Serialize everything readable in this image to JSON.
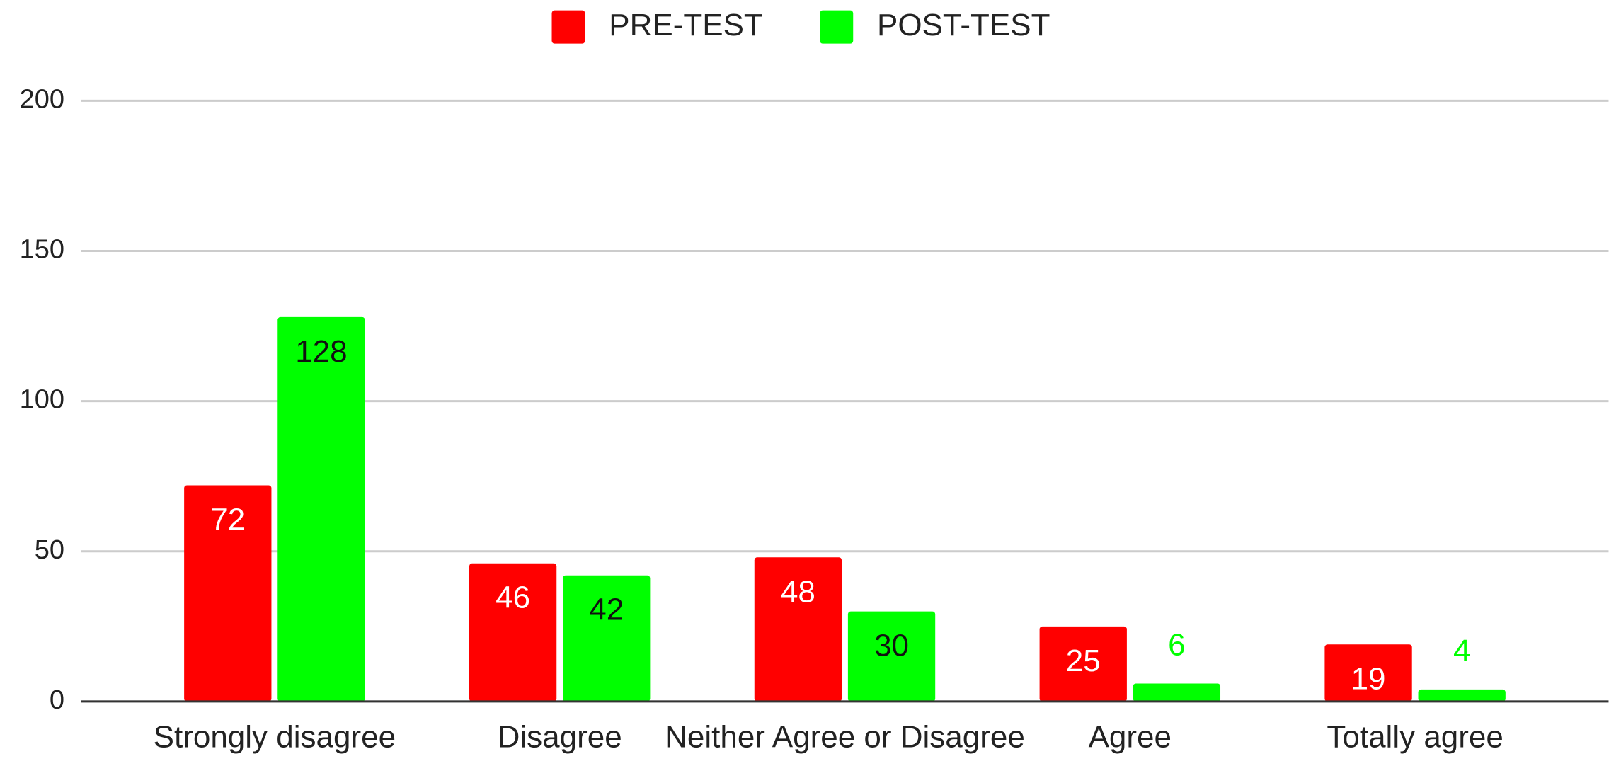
{
  "chart_data": {
    "type": "bar",
    "categories": [
      "Strongly disagree",
      "Disagree",
      "Neither Agree or Disagree",
      "Agree",
      "Totally agree"
    ],
    "series": [
      {
        "name": "PRE-TEST",
        "color": "#ff0000",
        "values": [
          72,
          46,
          48,
          25,
          19
        ]
      },
      {
        "name": "POST-TEST",
        "color": "#00ff00",
        "values": [
          128,
          42,
          30,
          6,
          4
        ]
      }
    ],
    "ylim": [
      0,
      200
    ],
    "yticks": [
      0,
      50,
      100,
      150,
      200
    ],
    "grid": true,
    "legend": "top"
  }
}
